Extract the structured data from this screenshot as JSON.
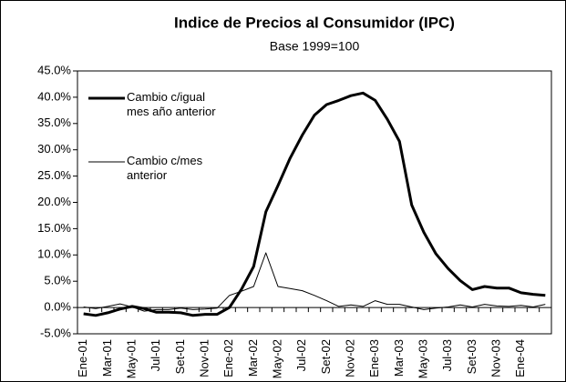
{
  "chart_data": {
    "type": "line",
    "title": "Indice de Precios al Consumidor (IPC)",
    "subtitle": "Base 1999=100",
    "categories": [
      "Ene-01",
      null,
      "Mar-01",
      null,
      "May-01",
      null,
      "Jul-01",
      null,
      "Set-01",
      null,
      "Nov-01",
      null,
      "Ene-02",
      null,
      "Mar-02",
      null,
      "May-02",
      null,
      "Jul-02",
      null,
      "Set-02",
      null,
      "Nov-02",
      null,
      "Ene-03",
      null,
      "Mar-03",
      null,
      "May-03",
      null,
      "Jul-03",
      null,
      "Set-03",
      null,
      "Nov-03",
      null,
      "Ene-04",
      null,
      null
    ],
    "series": [
      {
        "name": "Cambio c/igual mes año anterior",
        "color": "#000000",
        "values": [
          -1.2,
          -1.5,
          -1.0,
          -0.3,
          0.2,
          -0.2,
          -0.9,
          -0.9,
          -1.0,
          -1.5,
          -1.3,
          -1.3,
          0.0,
          3.5,
          7.8,
          18.2,
          23.2,
          28.4,
          32.8,
          36.6,
          38.6,
          39.4,
          40.3,
          40.8,
          39.4,
          35.8,
          31.6,
          19.5,
          14.3,
          10.2,
          7.4,
          5.1,
          3.4,
          4.0,
          3.7,
          3.7,
          2.8,
          2.5,
          2.3
        ]
      },
      {
        "name": "Cambio c/mes anterior",
        "color": "#000000",
        "values": [
          0.1,
          -0.2,
          0.2,
          0.7,
          0.1,
          -0.7,
          -0.4,
          -0.4,
          -0.1,
          -0.4,
          -0.3,
          -0.1,
          2.3,
          3.1,
          4.0,
          10.4,
          4.0,
          3.6,
          3.2,
          2.3,
          1.3,
          0.2,
          0.5,
          0.2,
          1.3,
          0.6,
          0.6,
          0.1,
          -0.4,
          -0.1,
          0.1,
          0.5,
          0.1,
          0.6,
          0.3,
          0.2,
          0.4,
          0.1,
          0.6
        ]
      }
    ],
    "ylim": [
      -5,
      45
    ],
    "yticks": [
      {
        "value": -5,
        "label": "-5.0%"
      },
      {
        "value": 0,
        "label": "0.0%"
      },
      {
        "value": 5,
        "label": "5.0%"
      },
      {
        "value": 10,
        "label": "10.0%"
      },
      {
        "value": 15,
        "label": "15.0%"
      },
      {
        "value": 20,
        "label": "20.0%"
      },
      {
        "value": 25,
        "label": "25.0%"
      },
      {
        "value": 30,
        "label": "30.0%"
      },
      {
        "value": 35,
        "label": "35.0%"
      },
      {
        "value": 40,
        "label": "40.0%"
      },
      {
        "value": 45,
        "label": "45.0%"
      }
    ],
    "legend": "upper left"
  }
}
